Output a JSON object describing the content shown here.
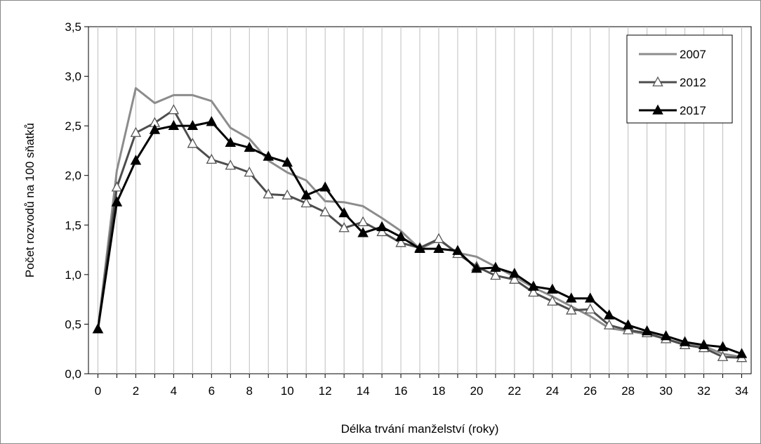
{
  "chart_data": {
    "type": "line",
    "title": "",
    "xlabel": "Délka trvání manželství (roky)",
    "ylabel": "Počet rozvodů na 100 sňatků",
    "xlim": [
      -0.5,
      34.5
    ],
    "ylim": [
      0,
      3.5
    ],
    "x_ticks": [
      0,
      2,
      4,
      6,
      8,
      10,
      12,
      14,
      16,
      18,
      20,
      22,
      24,
      26,
      28,
      30,
      32,
      34
    ],
    "x_tick_labels": [
      "0",
      "2",
      "4",
      "6",
      "8",
      "10",
      "12",
      "14",
      "16",
      "18",
      "20",
      "22",
      "24",
      "26",
      "28",
      "30",
      "32",
      "34"
    ],
    "y_ticks": [
      0,
      0.5,
      1.0,
      1.5,
      2.0,
      2.5,
      3.0,
      3.5
    ],
    "y_tick_labels": [
      "0,0",
      "0,5",
      "1,0",
      "1,5",
      "2,0",
      "2,5",
      "3,0",
      "3,5"
    ],
    "grid": "vertical",
    "legend_position": "top-right",
    "x": [
      0,
      1,
      2,
      3,
      4,
      5,
      6,
      7,
      8,
      9,
      10,
      11,
      12,
      13,
      14,
      15,
      16,
      17,
      18,
      19,
      20,
      21,
      22,
      23,
      24,
      25,
      26,
      27,
      28,
      29,
      30,
      31,
      32,
      33,
      34
    ],
    "series": [
      {
        "name": "2007",
        "color": "#8c8c8c",
        "marker": "none",
        "values": [
          0.45,
          2.05,
          2.88,
          2.73,
          2.81,
          2.81,
          2.75,
          2.48,
          2.37,
          2.15,
          2.03,
          1.95,
          1.74,
          1.73,
          1.69,
          1.57,
          1.44,
          1.26,
          1.35,
          1.22,
          1.18,
          1.08,
          0.98,
          0.87,
          0.78,
          0.68,
          0.58,
          0.46,
          0.43,
          0.4,
          0.35,
          0.3,
          0.28,
          0.2,
          0.17
        ]
      },
      {
        "name": "2012",
        "color": "#4d4d4d",
        "marker": "triangle-open",
        "values": [
          0.45,
          1.88,
          2.43,
          2.53,
          2.66,
          2.32,
          2.16,
          2.1,
          2.03,
          1.81,
          1.8,
          1.72,
          1.63,
          1.47,
          1.53,
          1.43,
          1.32,
          1.27,
          1.36,
          1.21,
          1.08,
          0.99,
          0.95,
          0.82,
          0.73,
          0.64,
          0.65,
          0.49,
          0.44,
          0.41,
          0.35,
          0.29,
          0.26,
          0.17,
          0.16
        ]
      },
      {
        "name": "2017",
        "color": "#000000",
        "marker": "triangle-filled",
        "values": [
          0.45,
          1.73,
          2.15,
          2.46,
          2.5,
          2.5,
          2.54,
          2.33,
          2.28,
          2.19,
          2.13,
          1.8,
          1.88,
          1.62,
          1.42,
          1.48,
          1.38,
          1.26,
          1.26,
          1.24,
          1.06,
          1.07,
          1.01,
          0.88,
          0.85,
          0.76,
          0.76,
          0.59,
          0.49,
          0.43,
          0.38,
          0.32,
          0.29,
          0.27,
          0.2
        ]
      }
    ]
  }
}
